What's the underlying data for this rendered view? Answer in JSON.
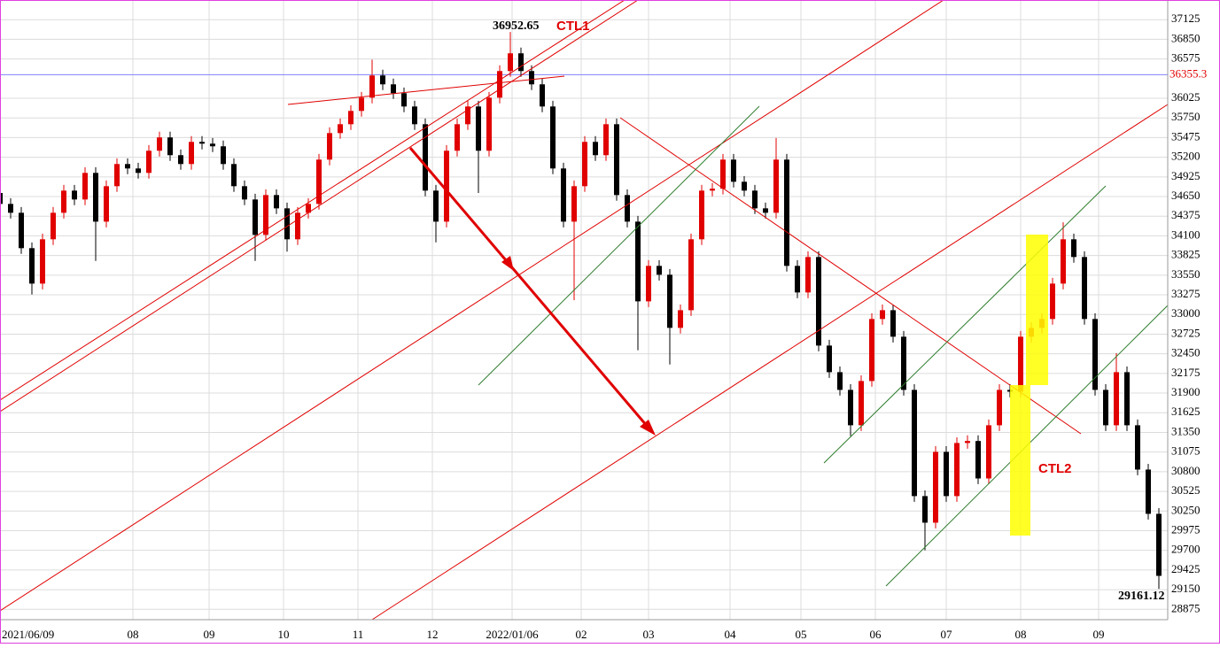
{
  "chart_data": {
    "type": "candlestick",
    "annotations": [
      "CTL1",
      "CTL2"
    ],
    "up_color": "#e00000",
    "down_color": "#000000",
    "grid": true,
    "hline": 36355.3,
    "hline_color": "#8080ff",
    "xlim": [
      0,
      329.5
    ],
    "ylim": [
      28730,
      37400
    ],
    "xticks": [
      {
        "value": 0,
        "label": "2021/06/09"
      },
      {
        "value": 37.5,
        "label": "08"
      },
      {
        "value": 59,
        "label": "09"
      },
      {
        "value": 80,
        "label": "10"
      },
      {
        "value": 101,
        "label": "11"
      },
      {
        "value": 122,
        "label": "12"
      },
      {
        "value": 144.5,
        "label": "2022/01/06"
      },
      {
        "value": 164,
        "label": "02"
      },
      {
        "value": 183,
        "label": "03"
      },
      {
        "value": 206,
        "label": "04"
      },
      {
        "value": 226,
        "label": "05"
      },
      {
        "value": 247,
        "label": "06"
      },
      {
        "value": 267,
        "label": "07"
      },
      {
        "value": 288,
        "label": "08"
      },
      {
        "value": 310,
        "label": "09"
      }
    ],
    "yticks": [
      28875,
      29150,
      29425,
      29700,
      29975,
      30250,
      30525,
      30800,
      31075,
      31350,
      31625,
      31900,
      32175,
      32450,
      32725,
      33000,
      33275,
      33550,
      33825,
      34100,
      34375,
      34650,
      34925,
      35200,
      35475,
      35750,
      36025,
      36575,
      36850,
      37125
    ],
    "x": [
      0,
      3,
      6,
      9,
      12,
      15,
      18,
      21,
      24,
      27,
      30,
      33,
      36,
      39,
      42,
      45,
      48,
      51,
      54,
      57,
      60,
      63,
      66,
      69,
      72,
      75,
      78,
      81,
      84,
      87,
      90,
      93,
      96,
      99,
      102,
      105,
      108,
      111,
      114,
      117,
      120,
      123,
      126,
      129,
      132,
      135,
      138,
      141,
      144,
      147,
      150,
      153,
      156,
      159,
      162,
      165,
      168,
      171,
      174,
      177,
      180,
      183,
      186,
      189,
      192,
      195,
      198,
      201,
      204,
      207,
      210,
      213,
      216,
      219,
      222,
      225,
      228,
      231,
      234,
      237,
      240,
      243,
      246,
      249,
      252,
      255,
      258,
      261,
      264,
      267,
      270,
      273,
      276,
      279,
      282,
      285,
      288,
      291,
      294,
      297,
      300,
      303,
      306,
      309,
      312,
      315,
      318,
      321,
      324,
      327
    ],
    "open": [
      34700,
      34547,
      34423,
      33928,
      33432,
      34052,
      34423,
      34733,
      34609,
      34981,
      34299,
      34795,
      35105,
      35043,
      34981,
      35291,
      35477,
      35229,
      35105,
      35415,
      35390,
      35353,
      35105,
      34795,
      34609,
      34114,
      34671,
      34485,
      34052,
      34423,
      34547,
      35167,
      35538,
      35662,
      35848,
      36034,
      36344,
      36220,
      36096,
      35910,
      35662,
      34733,
      34299,
      35291,
      35662,
      35910,
      35291,
      36034,
      36406,
      36654,
      36406,
      36220,
      35910,
      35043,
      34299,
      34795,
      35415,
      35229,
      35662,
      34671,
      34299,
      33184,
      33680,
      33556,
      32813,
      33060,
      34052,
      34733,
      34760,
      35167,
      34857,
      34733,
      34485,
      34423,
      35167,
      33680,
      33308,
      33804,
      32565,
      32193,
      31945,
      31450,
      32069,
      32937,
      33060,
      32689,
      31945,
      30459,
      30087,
      31078,
      30459,
      31202,
      31230,
      30706,
      31450,
      31945,
      31920,
      32689,
      32813,
      32937,
      33432,
      34052,
      33804,
      32937,
      31945,
      31450,
      32193,
      31450,
      30830,
      30211
    ],
    "high": [
      34780,
      34627,
      34503,
      34008,
      34132,
      34503,
      34813,
      34813,
      35061,
      35061,
      34875,
      35185,
      35185,
      35123,
      35371,
      35557,
      35557,
      35309,
      35495,
      35495,
      35470,
      35433,
      35185,
      34875,
      34689,
      34751,
      34751,
      34565,
      34503,
      34627,
      35247,
      35618,
      35742,
      35928,
      36114,
      36565,
      36424,
      36300,
      36176,
      35990,
      35742,
      34813,
      35371,
      35742,
      35990,
      35990,
      36114,
      36486,
      36952.65,
      36734,
      36486,
      36300,
      35990,
      35123,
      34875,
      35495,
      35495,
      35742,
      35742,
      34751,
      34379,
      33760,
      33760,
      33636,
      33140,
      34132,
      34813,
      34840,
      35247,
      35247,
      34937,
      34813,
      34565,
      35470,
      35247,
      33760,
      33884,
      33884,
      32645,
      32273,
      32025,
      32149,
      33017,
      33140,
      33140,
      32769,
      32025,
      30539,
      31158,
      31158,
      31282,
      31310,
      31310,
      31530,
      32025,
      32025,
      32769,
      32893,
      33017,
      33512,
      34290,
      34132,
      33884,
      33017,
      32025,
      32460,
      32273,
      31530,
      30910,
      30291
    ],
    "low": [
      34467,
      34343,
      33848,
      33280,
      33352,
      33972,
      34343,
      34529,
      34529,
      33750,
      34219,
      34715,
      34963,
      34901,
      34901,
      35211,
      35149,
      35025,
      35025,
      35310,
      35273,
      35025,
      34715,
      34529,
      33750,
      34034,
      34405,
      33880,
      33972,
      34343,
      34467,
      35087,
      35458,
      35582,
      35768,
      35954,
      36140,
      36016,
      35830,
      35582,
      34653,
      34010,
      34219,
      35211,
      35582,
      34700,
      35211,
      35954,
      36326,
      36326,
      36140,
      35830,
      34963,
      34219,
      33200,
      34715,
      35149,
      35149,
      34591,
      34219,
      32500,
      33104,
      33476,
      32300,
      32733,
      32980,
      33972,
      34653,
      34680,
      34777,
      34653,
      34405,
      34343,
      34343,
      33600,
      33228,
      33228,
      32485,
      32113,
      31865,
      31300,
      31370,
      31989,
      32857,
      32609,
      31865,
      30379,
      29700,
      30007,
      30379,
      30379,
      31122,
      30626,
      30626,
      31370,
      31840,
      31840,
      32609,
      32733,
      32857,
      33352,
      33724,
      32857,
      31865,
      31370,
      31370,
      31370,
      30750,
      30131,
      29161.12
    ],
    "close": [
      34547,
      34423,
      33928,
      33432,
      34052,
      34423,
      34733,
      34609,
      34981,
      34299,
      34795,
      35105,
      35043,
      34981,
      35291,
      35477,
      35229,
      35105,
      35415,
      35390,
      35353,
      35105,
      34795,
      34609,
      34114,
      34671,
      34485,
      34052,
      34423,
      34547,
      35167,
      35538,
      35662,
      35848,
      36034,
      36344,
      36220,
      36096,
      35910,
      35662,
      34733,
      34299,
      35291,
      35662,
      35910,
      35291,
      36034,
      36406,
      36654,
      36406,
      36220,
      35910,
      35043,
      34299,
      34795,
      35415,
      35229,
      35662,
      34671,
      34299,
      33184,
      33680,
      33556,
      32813,
      33060,
      34052,
      34733,
      34760,
      35167,
      34857,
      34733,
      34485,
      34423,
      35167,
      33680,
      33308,
      33804,
      32565,
      32193,
      31945,
      31450,
      32069,
      32937,
      33060,
      32689,
      31945,
      30459,
      30087,
      31078,
      30459,
      31202,
      31230,
      30706,
      31450,
      31945,
      31920,
      32689,
      32813,
      32937,
      33432,
      34052,
      33804,
      32937,
      31945,
      31450,
      32193,
      31450,
      30830,
      30211,
      29343
    ]
  }
}
